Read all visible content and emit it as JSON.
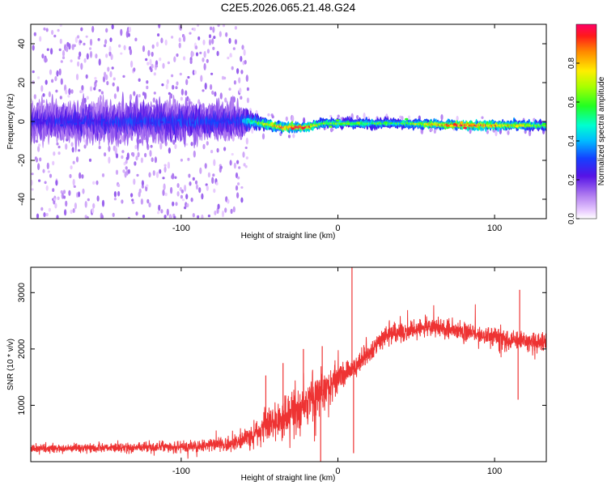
{
  "title": "C2E5.2026.065.21.48.G24",
  "chart_data": [
    {
      "type": "heatmap",
      "xlabel": "Height of straight line (km)",
      "ylabel": "Frequency (Hz)",
      "xlim": [
        -196,
        133
      ],
      "ylim": [
        -50,
        50
      ],
      "xticks": [
        -100,
        0,
        100
      ],
      "yticks": [
        -40,
        -20,
        0,
        20,
        40
      ],
      "colorbar": {
        "label": "Normalized spectral amplitude",
        "range": [
          0,
          1
        ],
        "ticks": [
          0.0,
          0.2,
          0.4,
          0.6,
          0.8
        ]
      },
      "profile": [
        {
          "x": -196,
          "center": 0,
          "core_halfwidth": 8,
          "scatter": 50,
          "peak": 0.25
        },
        {
          "x": -100,
          "center": 0,
          "core_halfwidth": 8,
          "scatter": 50,
          "peak": 0.3
        },
        {
          "x": -62,
          "center": 0,
          "core_halfwidth": 7,
          "scatter": 50,
          "peak": 0.3
        },
        {
          "x": -55,
          "center": 0,
          "core_halfwidth": 3,
          "scatter": 8,
          "peak": 0.5
        },
        {
          "x": -35,
          "center": -3,
          "core_halfwidth": 2,
          "scatter": 6,
          "peak": 0.9
        },
        {
          "x": -20,
          "center": -3,
          "core_halfwidth": 2,
          "scatter": 5,
          "peak": 0.95
        },
        {
          "x": -10,
          "center": -1,
          "core_halfwidth": 2,
          "scatter": 4,
          "peak": 0.6
        },
        {
          "x": 10,
          "center": -1,
          "core_halfwidth": 2,
          "scatter": 4,
          "peak": 0.6
        },
        {
          "x": 40,
          "center": -1,
          "core_halfwidth": 2,
          "scatter": 4,
          "peak": 0.55
        },
        {
          "x": 80,
          "center": -2,
          "core_halfwidth": 2,
          "scatter": 4,
          "peak": 0.95
        },
        {
          "x": 133,
          "center": -2,
          "core_halfwidth": 2,
          "scatter": 4,
          "peak": 0.6
        }
      ]
    },
    {
      "type": "line",
      "xlabel": "Height of straight line (km)",
      "ylabel": "SNR (10 * v/v)",
      "xlim": [
        -196,
        133
      ],
      "ylim": [
        0,
        3450
      ],
      "xticks": [
        -100,
        0,
        100
      ],
      "yticks": [
        1000,
        2000,
        3000
      ],
      "series": [
        {
          "name": "SNR",
          "color": "#ee3333",
          "envelope": [
            {
              "x": -196,
              "mean": 230,
              "spread": 80
            },
            {
              "x": -150,
              "mean": 240,
              "spread": 90
            },
            {
              "x": -100,
              "mean": 270,
              "spread": 110
            },
            {
              "x": -70,
              "mean": 310,
              "spread": 130
            },
            {
              "x": -60,
              "mean": 380,
              "spread": 180
            },
            {
              "x": -45,
              "mean": 650,
              "spread": 350
            },
            {
              "x": -30,
              "mean": 850,
              "spread": 450
            },
            {
              "x": -15,
              "mean": 1150,
              "spread": 550
            },
            {
              "x": 0,
              "mean": 1450,
              "spread": 300
            },
            {
              "x": 15,
              "mean": 1800,
              "spread": 250
            },
            {
              "x": 30,
              "mean": 2250,
              "spread": 200
            },
            {
              "x": 60,
              "mean": 2400,
              "spread": 180
            },
            {
              "x": 90,
              "mean": 2250,
              "spread": 180
            },
            {
              "x": 110,
              "mean": 2150,
              "spread": 200
            },
            {
              "x": 133,
              "mean": 2150,
              "spread": 200
            }
          ],
          "spikes": [
            {
              "x": -46,
              "y": 1530
            },
            {
              "x": -35,
              "y": 1750
            },
            {
              "x": -22,
              "y": 2000
            },
            {
              "x": -10,
              "y": 2050
            },
            {
              "x": 9,
              "y": 3450
            },
            {
              "x": 10,
              "y": 150
            },
            {
              "x": -11,
              "y": 0
            },
            {
              "x": 116,
              "y": 3050
            },
            {
              "x": 115,
              "y": 1100
            }
          ]
        }
      ]
    }
  ]
}
